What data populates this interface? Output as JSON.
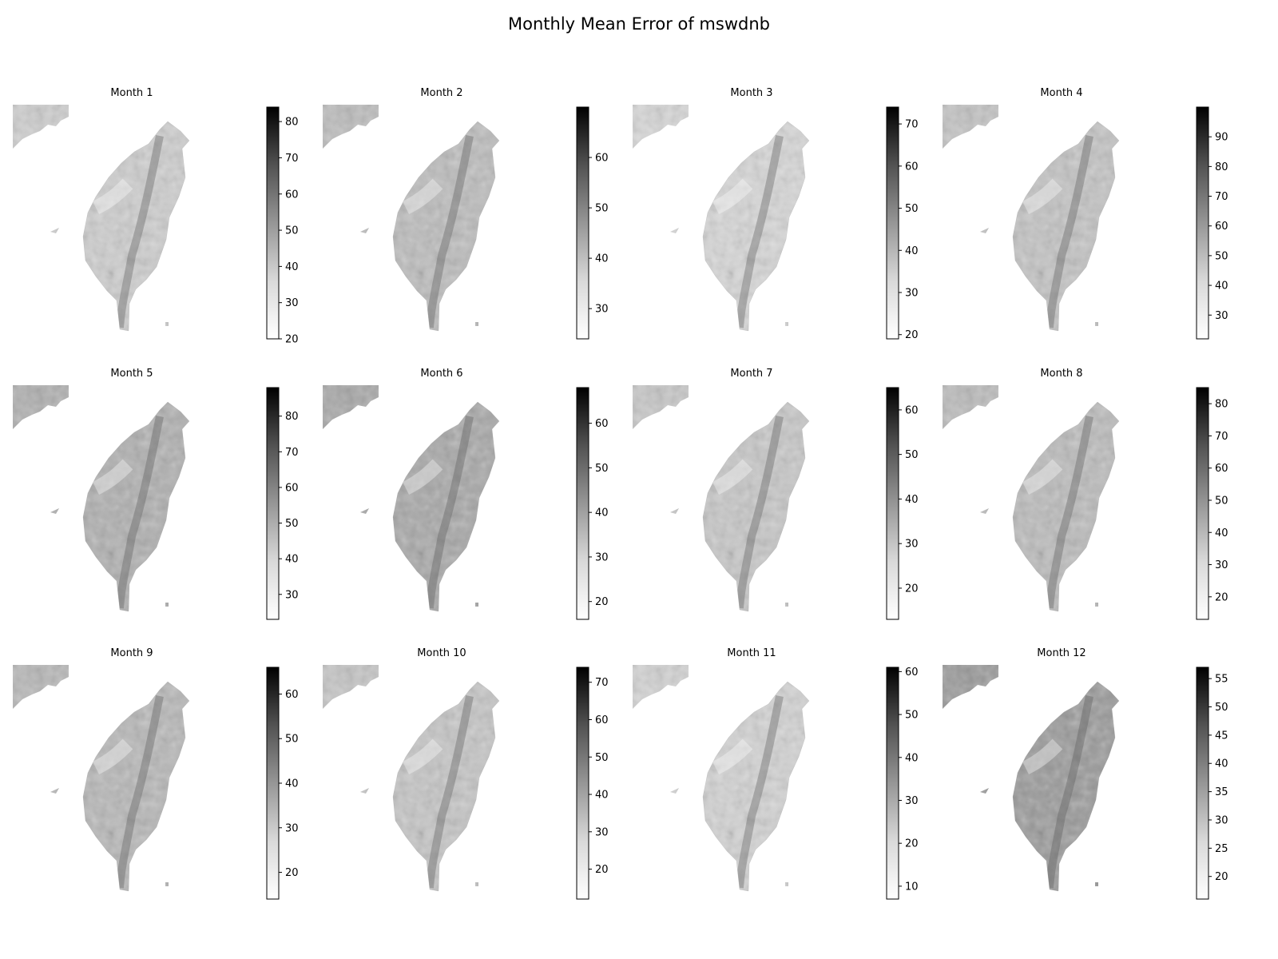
{
  "figure": {
    "title": "Monthly Mean Error of mswdnb"
  },
  "chart_data": [
    {
      "type": "heatmap",
      "title": "Month 1",
      "colormap": "Greys",
      "colorbar": {
        "vmin": 20,
        "vmax": 84,
        "ticks": [
          20,
          30,
          40,
          50,
          60,
          70,
          80
        ]
      }
    },
    {
      "type": "heatmap",
      "title": "Month 2",
      "colormap": "Greys",
      "colorbar": {
        "vmin": 24,
        "vmax": 70,
        "ticks": [
          30,
          40,
          50,
          60
        ]
      }
    },
    {
      "type": "heatmap",
      "title": "Month 3",
      "colormap": "Greys",
      "colorbar": {
        "vmin": 19,
        "vmax": 74,
        "ticks": [
          20,
          30,
          40,
          50,
          60,
          70
        ]
      }
    },
    {
      "type": "heatmap",
      "title": "Month 4",
      "colormap": "Greys",
      "colorbar": {
        "vmin": 22,
        "vmax": 100,
        "ticks": [
          30,
          40,
          50,
          60,
          70,
          80,
          90
        ]
      }
    },
    {
      "type": "heatmap",
      "title": "Month 5",
      "colormap": "Greys",
      "colorbar": {
        "vmin": 23,
        "vmax": 88,
        "ticks": [
          30,
          40,
          50,
          60,
          70,
          80
        ]
      }
    },
    {
      "type": "heatmap",
      "title": "Month 6",
      "colormap": "Greys",
      "colorbar": {
        "vmin": 16,
        "vmax": 68,
        "ticks": [
          20,
          30,
          40,
          50,
          60
        ]
      }
    },
    {
      "type": "heatmap",
      "title": "Month 7",
      "colormap": "Greys",
      "colorbar": {
        "vmin": 13,
        "vmax": 65,
        "ticks": [
          20,
          30,
          40,
          50,
          60
        ]
      }
    },
    {
      "type": "heatmap",
      "title": "Month 8",
      "colormap": "Greys",
      "colorbar": {
        "vmin": 13,
        "vmax": 85,
        "ticks": [
          20,
          30,
          40,
          50,
          60,
          70,
          80
        ]
      }
    },
    {
      "type": "heatmap",
      "title": "Month 9",
      "colormap": "Greys",
      "colorbar": {
        "vmin": 14,
        "vmax": 66,
        "ticks": [
          20,
          30,
          40,
          50,
          60
        ]
      }
    },
    {
      "type": "heatmap",
      "title": "Month 10",
      "colormap": "Greys",
      "colorbar": {
        "vmin": 12,
        "vmax": 74,
        "ticks": [
          20,
          30,
          40,
          50,
          60,
          70
        ]
      }
    },
    {
      "type": "heatmap",
      "title": "Month 11",
      "colormap": "Greys",
      "colorbar": {
        "vmin": 7,
        "vmax": 61,
        "ticks": [
          10,
          20,
          30,
          40,
          50,
          60
        ]
      }
    },
    {
      "type": "heatmap",
      "title": "Month 12",
      "colormap": "Greys",
      "colorbar": {
        "vmin": 16,
        "vmax": 57,
        "ticks": [
          20,
          25,
          30,
          35,
          40,
          45,
          50,
          55
        ]
      }
    }
  ]
}
